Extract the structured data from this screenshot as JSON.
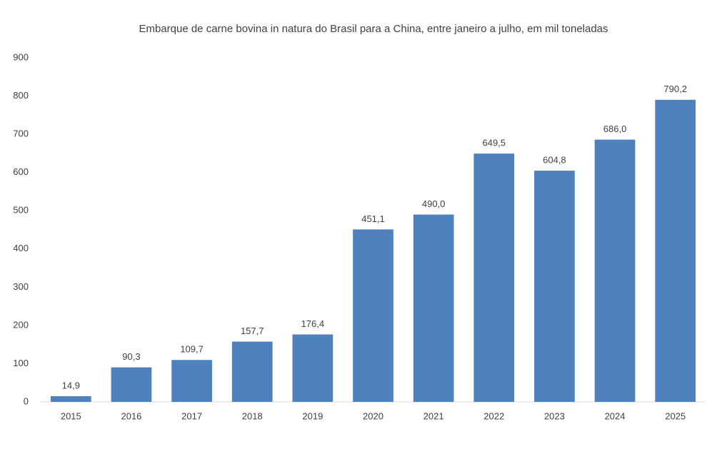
{
  "chart_data": {
    "type": "bar",
    "title": "Embarque de carne bovina in natura do Brasil para a China, entre janeiro a julho,  em mil toneladas",
    "categories": [
      "2015",
      "2016",
      "2017",
      "2018",
      "2019",
      "2020",
      "2021",
      "2022",
      "2023",
      "2024",
      "2025"
    ],
    "values": [
      14.9,
      90.3,
      109.7,
      157.7,
      176.4,
      451.1,
      490.0,
      649.5,
      604.8,
      686.0,
      790.2
    ],
    "value_labels": [
      "14,9",
      "90,3",
      "109,7",
      "157,7",
      "176,4",
      "451,1",
      "490,0",
      "649,5",
      "604,8",
      "686,0",
      "790,2"
    ],
    "color": "#4f81bd",
    "ylim": [
      0,
      900
    ],
    "yticks": [
      0,
      100,
      200,
      300,
      400,
      500,
      600,
      700,
      800,
      900
    ],
    "grid": false
  }
}
